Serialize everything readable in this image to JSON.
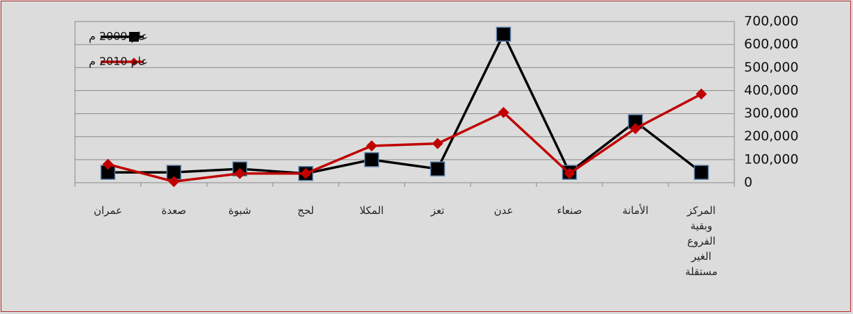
{
  "chart_data": {
    "type": "line",
    "categories": [
      "المركز وبقية الفروع الغير مستقلة",
      "الأمانة",
      "صنعاء",
      "عدن",
      "تعز",
      "المكلا",
      "لحج",
      "شبوة",
      "صعدة",
      "عمران"
    ],
    "series": [
      {
        "name": "عام 2009 م",
        "color": "#000000",
        "values": [
          45000,
          265000,
          45000,
          645000,
          60000,
          100000,
          40000,
          60000,
          45000,
          45000
        ]
      },
      {
        "name": "عام 2010 م",
        "color": "#c00000",
        "values": [
          385000,
          235000,
          40000,
          305000,
          170000,
          160000,
          40000,
          40000,
          5000,
          80000
        ]
      }
    ],
    "ylim": [
      0,
      700000
    ],
    "yticks": [
      0,
      {
        "value": 100000,
        "label": "100,000"
      },
      {
        "value": 200000,
        "label": "200,000"
      },
      {
        "value": 300000,
        "label": "300,000"
      },
      {
        "value": 400000,
        "label": "400,000"
      },
      {
        "value": 500000,
        "label": "500,000"
      },
      {
        "value": 600000,
        "label": "600,000"
      },
      {
        "value": 700000,
        "label": "700,000"
      }
    ],
    "grid": true,
    "legend": "top-left"
  }
}
